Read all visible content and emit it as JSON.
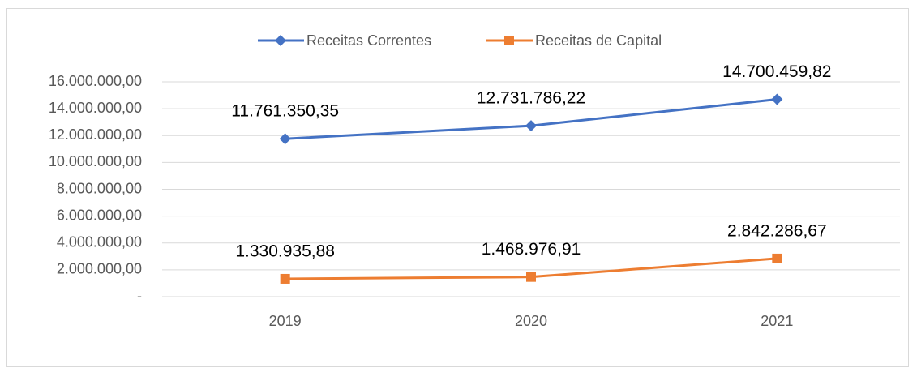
{
  "chart_data": {
    "type": "line",
    "categories": [
      "2019",
      "2020",
      "2021"
    ],
    "series": [
      {
        "name": "Receitas Correntes",
        "color": "#4472c4",
        "marker": "diamond",
        "values": [
          11761350.35,
          12731786.22,
          14700459.82
        ],
        "value_labels": [
          "11.761.350,35",
          "12.731.786,22",
          "14.700.459,82"
        ]
      },
      {
        "name": "Receitas de Capital",
        "color": "#ed7d31",
        "marker": "square",
        "values": [
          1330935.88,
          1468976.91,
          2842286.67
        ],
        "value_labels": [
          "1.330.935,88",
          "1.468.976,91",
          "2.842.286,67"
        ]
      }
    ],
    "ylim": [
      0,
      16000000
    ],
    "yticks": [
      {
        "value": 0,
        "label": "-"
      },
      {
        "value": 2000000,
        "label": "2.000.000,00"
      },
      {
        "value": 4000000,
        "label": "4.000.000,00"
      },
      {
        "value": 6000000,
        "label": "6.000.000,00"
      },
      {
        "value": 8000000,
        "label": "8.000.000,00"
      },
      {
        "value": 10000000,
        "label": "10.000.000,00"
      },
      {
        "value": 12000000,
        "label": "12.000.000,00"
      },
      {
        "value": 14000000,
        "label": "14.000.000,00"
      },
      {
        "value": 16000000,
        "label": "16.000.000,00"
      }
    ],
    "grid": true,
    "legend": "top"
  }
}
